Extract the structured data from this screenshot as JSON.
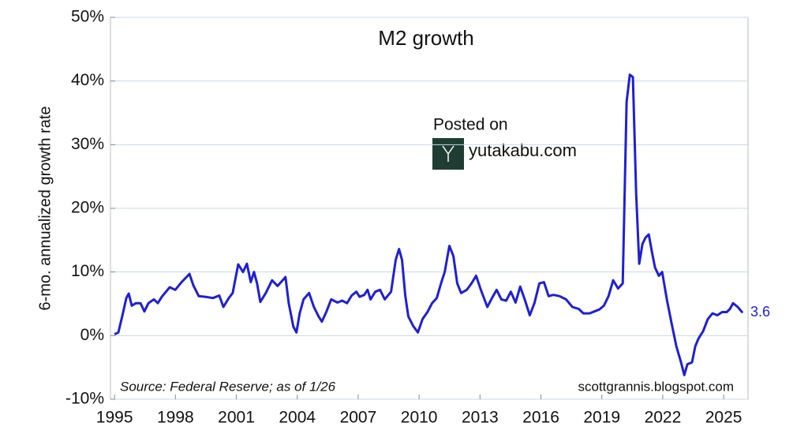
{
  "chart_data": {
    "type": "line",
    "title": "M2 growth",
    "ylabel": "6-mo. annualized growth rate",
    "annotations": {
      "source": "Source: Federal Reserve; as of 1/26",
      "credit": "scottgrannis.blogspot.com",
      "posted": "Posted on",
      "site": "yutakabu.com"
    },
    "color": "#1f1fd6",
    "grid": true,
    "xlim": [
      1994.8,
      2026.2
    ],
    "xticks": [
      1995,
      1998,
      2001,
      2004,
      2007,
      2010,
      2013,
      2016,
      2019,
      2022,
      2025
    ],
    "ylim": [
      -10,
      50
    ],
    "yticks": [
      {
        "value": -10,
        "label": "-10%"
      },
      {
        "value": 0,
        "label": "0%"
      },
      {
        "value": 10,
        "label": "10%"
      },
      {
        "value": 20,
        "label": "20%"
      },
      {
        "value": 30,
        "label": "30%"
      },
      {
        "value": 40,
        "label": "40%"
      },
      {
        "value": 50,
        "label": "50%"
      }
    ],
    "x": [
      1995.0,
      1995.19,
      1995.39,
      1995.58,
      1995.7,
      1995.85,
      1996.05,
      1996.28,
      1996.47,
      1996.67,
      1996.94,
      1997.13,
      1997.33,
      1997.72,
      1997.99,
      1998.3,
      1998.69,
      1998.88,
      1999.15,
      1999.46,
      1999.85,
      2000.16,
      2000.36,
      2000.63,
      2000.82,
      2001.09,
      2001.33,
      2001.52,
      2001.71,
      2001.87,
      2002.02,
      2002.18,
      2002.45,
      2002.76,
      2003.03,
      2003.42,
      2003.58,
      2003.81,
      2003.96,
      2004.12,
      2004.31,
      2004.58,
      2004.82,
      2005.05,
      2005.21,
      2005.44,
      2005.67,
      2005.98,
      2006.21,
      2006.45,
      2006.68,
      2006.91,
      2007.07,
      2007.3,
      2007.46,
      2007.61,
      2007.84,
      2008.08,
      2008.31,
      2008.62,
      2008.85,
      2009.01,
      2009.16,
      2009.32,
      2009.47,
      2009.71,
      2009.94,
      2010.17,
      2010.41,
      2010.64,
      2010.87,
      2011.1,
      2011.26,
      2011.49,
      2011.69,
      2011.88,
      2012.07,
      2012.35,
      2012.58,
      2012.81,
      2013.04,
      2013.36,
      2013.59,
      2013.82,
      2014.05,
      2014.29,
      2014.52,
      2014.75,
      2014.98,
      2015.22,
      2015.45,
      2015.68,
      2015.92,
      2016.15,
      2016.38,
      2016.61,
      2016.92,
      2017.24,
      2017.55,
      2017.86,
      2018.09,
      2018.4,
      2018.63,
      2018.87,
      2019.1,
      2019.33,
      2019.56,
      2019.8,
      2020.03,
      2020.22,
      2020.38,
      2020.53,
      2020.69,
      2020.84,
      2021.0,
      2021.15,
      2021.31,
      2021.47,
      2021.62,
      2021.81,
      2021.97,
      2022.2,
      2022.43,
      2022.67,
      2022.9,
      2023.06,
      2023.21,
      2023.44,
      2023.6,
      2023.75,
      2023.99,
      2024.22,
      2024.45,
      2024.69,
      2024.92,
      2025.15,
      2025.31,
      2025.46,
      2025.69,
      2025.93
    ],
    "values": [
      0.2,
      0.5,
      3.2,
      5.9,
      6.6,
      4.7,
      5.1,
      5.1,
      3.8,
      5.1,
      5.7,
      5.1,
      6.1,
      7.6,
      7.2,
      8.4,
      9.7,
      7.9,
      6.2,
      6.1,
      5.9,
      6.3,
      4.5,
      5.9,
      6.7,
      11.2,
      10.0,
      11.3,
      8.4,
      10.0,
      8.2,
      5.3,
      6.7,
      8.7,
      7.8,
      9.2,
      5.1,
      1.4,
      0.5,
      3.5,
      5.7,
      6.7,
      4.5,
      3.0,
      2.2,
      3.8,
      5.7,
      5.2,
      5.5,
      5.1,
      6.3,
      6.9,
      6.1,
      6.4,
      7.2,
      5.7,
      6.9,
      7.2,
      5.7,
      6.9,
      11.9,
      13.6,
      11.9,
      6.3,
      3.0,
      1.5,
      0.5,
      2.6,
      3.7,
      5.1,
      5.9,
      8.4,
      10.0,
      14.1,
      12.5,
      8.2,
      6.7,
      7.2,
      8.2,
      9.4,
      7.2,
      4.5,
      5.9,
      7.2,
      5.7,
      5.5,
      6.9,
      5.2,
      7.7,
      5.5,
      3.2,
      5.1,
      8.2,
      8.4,
      6.2,
      6.4,
      6.2,
      5.7,
      4.5,
      4.2,
      3.5,
      3.5,
      3.8,
      4.1,
      4.7,
      6.2,
      8.7,
      7.4,
      8.2,
      36.7,
      41.0,
      40.6,
      22.4,
      11.3,
      14.4,
      15.4,
      15.9,
      13.1,
      10.7,
      9.4,
      10.0,
      5.7,
      2.0,
      -1.7,
      -4.2,
      -6.2,
      -4.5,
      -4.2,
      -1.7,
      -0.5,
      0.7,
      2.6,
      3.5,
      3.2,
      3.7,
      3.7,
      4.2,
      5.1,
      4.5,
      3.6
    ]
  }
}
